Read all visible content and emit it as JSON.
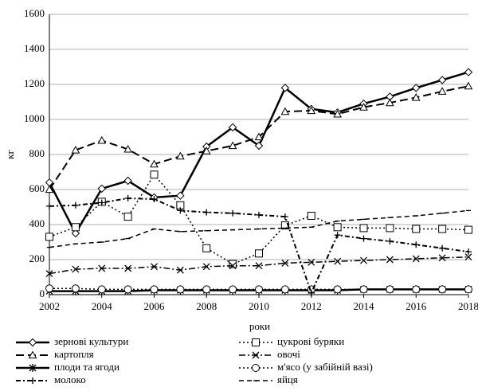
{
  "chart_data": {
    "type": "line",
    "x": [
      2002,
      2003,
      2004,
      2005,
      2006,
      2007,
      2008,
      2009,
      2010,
      2011,
      2012,
      2013,
      2014,
      2015,
      2016,
      2017,
      2018
    ],
    "xlim": [
      2002,
      2018
    ],
    "xticks": [
      2002,
      2004,
      2006,
      2008,
      2010,
      2012,
      2014,
      2016,
      2018
    ],
    "ylim": [
      0,
      1600
    ],
    "yticks": [
      0,
      200,
      400,
      600,
      800,
      1000,
      1200,
      1400,
      1600
    ],
    "xlabel": "роки",
    "ylabel": "кг",
    "grid": true,
    "legend": "bottom",
    "series": [
      {
        "name": "зернові культури",
        "color": "#000000",
        "values": [
          640,
          350,
          605,
          650,
          555,
          565,
          845,
          955,
          850,
          1180,
          1060,
          1040,
          1090,
          1130,
          1180,
          1225,
          1270
        ]
      },
      {
        "name": "цукрові буряки",
        "color": "#000000",
        "values": [
          330,
          385,
          530,
          445,
          685,
          510,
          265,
          175,
          235,
          395,
          450,
          385,
          380,
          380,
          375,
          375,
          370
        ]
      },
      {
        "name": "картопля",
        "color": "#000000",
        "values": [
          600,
          825,
          880,
          830,
          745,
          790,
          820,
          850,
          900,
          1045,
          1050,
          1030,
          1070,
          1095,
          1125,
          1160,
          1190
        ]
      },
      {
        "name": "овочі",
        "color": "#000000",
        "values": [
          120,
          145,
          150,
          150,
          160,
          140,
          160,
          165,
          165,
          180,
          185,
          190,
          195,
          200,
          205,
          210,
          215
        ]
      },
      {
        "name": "плоди та ягоди",
        "color": "#000000",
        "values": [
          20,
          20,
          20,
          20,
          25,
          25,
          25,
          25,
          25,
          25,
          25,
          25,
          30,
          30,
          30,
          30,
          30
        ]
      },
      {
        "name": "м'ясо (у забійній вазі)",
        "color": "#000000",
        "values": [
          35,
          35,
          30,
          30,
          30,
          30,
          30,
          30,
          30,
          30,
          30,
          30,
          30,
          30,
          30,
          30,
          30
        ]
      },
      {
        "name": "молоко",
        "color": "#000000",
        "values": [
          505,
          510,
          525,
          550,
          545,
          480,
          470,
          465,
          455,
          445,
          10,
          340,
          320,
          305,
          285,
          265,
          245
        ]
      },
      {
        "name": "яйця",
        "color": "#000000",
        "values": [
          270,
          290,
          300,
          320,
          375,
          360,
          365,
          370,
          375,
          380,
          385,
          420,
          430,
          440,
          450,
          465,
          480
        ]
      }
    ]
  }
}
